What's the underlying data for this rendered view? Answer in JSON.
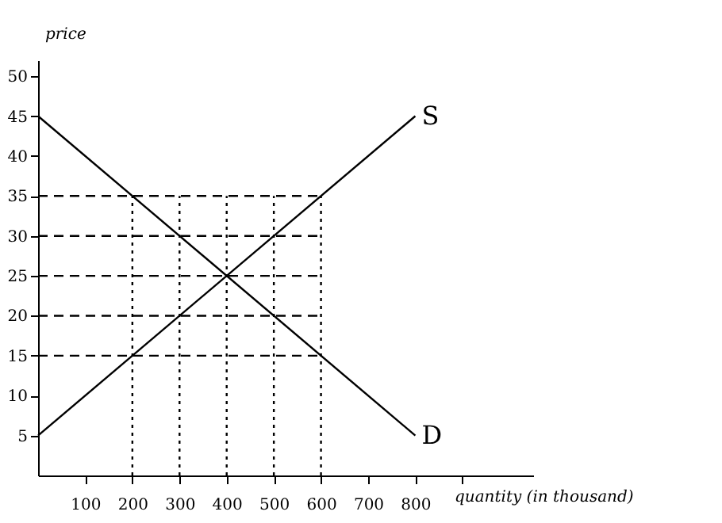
{
  "chart_data": {
    "type": "line",
    "xlabel": "quantity (in thousand)",
    "ylabel": "price",
    "xlim": [
      0,
      1050
    ],
    "ylim": [
      0,
      52
    ],
    "xticks": [
      100,
      200,
      300,
      400,
      500,
      600,
      700,
      800,
      {
        "value": 900,
        "label": null
      }
    ],
    "yticks": [
      5,
      10,
      15,
      20,
      25,
      30,
      35,
      40,
      45,
      50
    ],
    "grid": false,
    "marker": "none",
    "series": [
      {
        "name": "S",
        "color": "#000000",
        "x": [
          0,
          800
        ],
        "values": [
          5,
          45
        ],
        "line_style": "solid"
      },
      {
        "name": "D",
        "color": "#000000",
        "x": [
          0,
          800
        ],
        "values": [
          45,
          5
        ],
        "line_style": "solid"
      },
      {
        "color": "#000000",
        "x": [
          0,
          600
        ],
        "values": [
          35,
          35
        ],
        "line_style": "dashed"
      },
      {
        "color": "#000000",
        "x": [
          0,
          600
        ],
        "values": [
          30,
          30
        ],
        "line_style": "dashed"
      },
      {
        "color": "#000000",
        "x": [
          0,
          600
        ],
        "values": [
          25,
          25
        ],
        "line_style": "dashed"
      },
      {
        "color": "#000000",
        "x": [
          0,
          600
        ],
        "values": [
          20,
          20
        ],
        "line_style": "dashed"
      },
      {
        "color": "#000000",
        "x": [
          0,
          600
        ],
        "values": [
          15,
          15
        ],
        "line_style": "dashed"
      },
      {
        "color": "#000000",
        "x": [
          200,
          200
        ],
        "values": [
          0,
          35
        ],
        "line_style": "dotted"
      },
      {
        "color": "#000000",
        "x": [
          300,
          300
        ],
        "values": [
          0,
          35
        ],
        "line_style": "dotted"
      },
      {
        "color": "#000000",
        "x": [
          400,
          400
        ],
        "values": [
          0,
          35
        ],
        "line_style": "dotted"
      },
      {
        "color": "#000000",
        "x": [
          500,
          500
        ],
        "values": [
          0,
          35
        ],
        "line_style": "dotted"
      },
      {
        "color": "#000000",
        "x": [
          600,
          600
        ],
        "values": [
          0,
          35
        ],
        "line_style": "dotted"
      }
    ]
  }
}
